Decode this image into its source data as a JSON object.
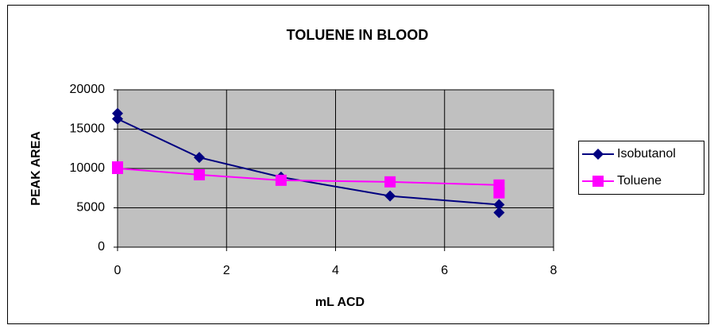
{
  "chart_data": {
    "type": "line",
    "title": "TOLUENE IN BLOOD",
    "x_label": "mL ACD",
    "y_label": "PEAK AREA",
    "x": [
      0,
      0,
      1.5,
      3,
      5,
      7,
      7
    ],
    "series": [
      {
        "name": "Isobutanol",
        "color": "#000080",
        "marker": "diamond",
        "values": [
          17000,
          16300,
          11400,
          8900,
          6500,
          5400,
          4400
        ]
      },
      {
        "name": "Toluene",
        "color": "#FF00FF",
        "marker": "square",
        "values": [
          10200,
          10000,
          9200,
          8500,
          8300,
          7900,
          6900
        ]
      }
    ],
    "xlim": [
      0,
      8
    ],
    "xticks": [
      0,
      2,
      4,
      6,
      8
    ],
    "ylim": [
      0,
      20000
    ],
    "yticks": [
      0,
      5000,
      10000,
      15000,
      20000
    ],
    "grid": true,
    "legend": "right"
  }
}
